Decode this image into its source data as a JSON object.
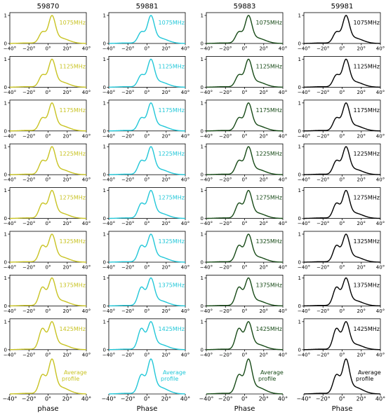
{
  "chart_data": {
    "type": "line",
    "layout": "grid",
    "columns": [
      {
        "title": "59870",
        "color": "#c8c323",
        "xlabel": "phase"
      },
      {
        "title": "59881",
        "color": "#22c7d8",
        "xlabel": "Phase"
      },
      {
        "title": "59883",
        "color": "#174a17",
        "xlabel": "Phase"
      },
      {
        "title": "59981",
        "color": "#000000",
        "xlabel": "Phase"
      }
    ],
    "rows": [
      "1075MHz",
      "1125MHz",
      "1175MHz",
      "1225MHz",
      "1275MHz",
      "1325MHz",
      "1375MHz",
      "1425MHz"
    ],
    "average_label": [
      "Average",
      "profile"
    ],
    "xlim": [
      -40,
      40
    ],
    "xticks": [
      "−40°",
      "−20°",
      "0°",
      "20°",
      "40°"
    ],
    "ylim": [
      0,
      1
    ],
    "yticks": [
      "0",
      "1"
    ],
    "profile_model": {
      "components": [
        {
          "center": -22,
          "width": 8,
          "amp": 0.02
        },
        {
          "center": -6,
          "width": 3.5,
          "amp": 0.48
        },
        {
          "center": 4,
          "width": 3.5,
          "amp": 0.95
        },
        {
          "center": 12,
          "width": 9,
          "amp": 0.22
        }
      ],
      "leading_amp_by_row": [
        0.42,
        0.45,
        0.48,
        0.52,
        0.56,
        0.62,
        0.7,
        0.8
      ]
    }
  }
}
